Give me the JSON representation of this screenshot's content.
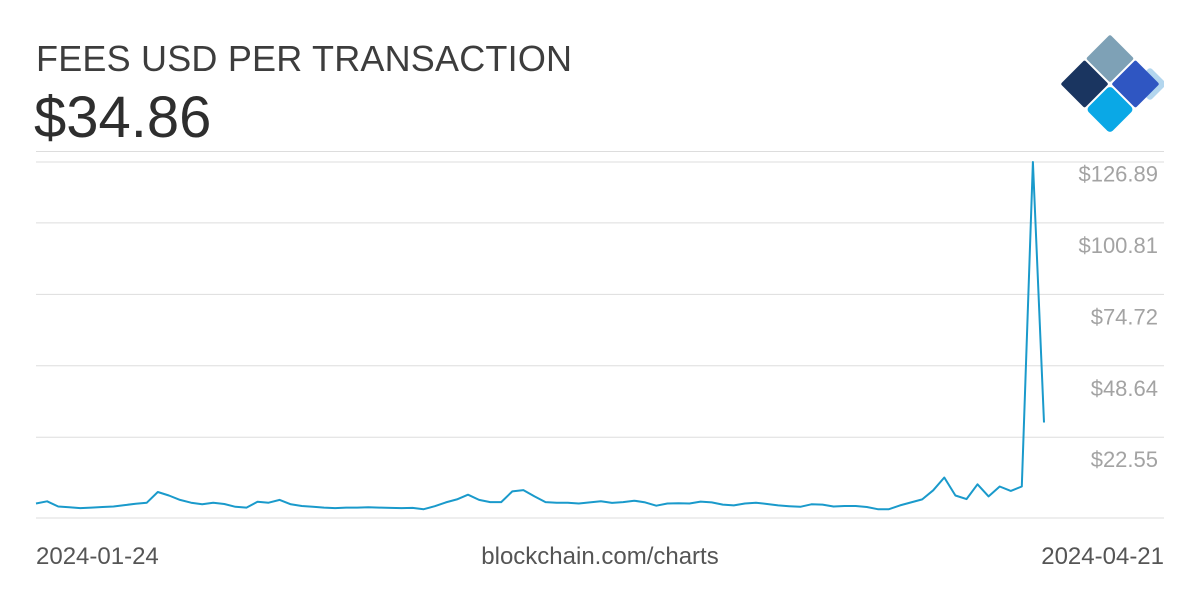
{
  "header": {
    "title": "FEES USD PER TRANSACTION",
    "current_value": "$34.86"
  },
  "footer": {
    "start_date": "2024-01-24",
    "source": "blockchain.com/charts",
    "end_date": "2024-04-21"
  },
  "logo": {
    "colors": [
      "#7ea1b6",
      "#1a3560",
      "#2f56c2",
      "#0aa8e6",
      "#b3d6ee"
    ]
  },
  "colors": {
    "line": "#1a9acb",
    "grid": "#dddddd",
    "tick_label": "#a3a3a3"
  },
  "chart_data": {
    "type": "line",
    "x_range": [
      "2024-01-24",
      "2024-04-21"
    ],
    "ylim": [
      0,
      130
    ],
    "y_ticks": [
      22.55,
      48.64,
      74.72,
      100.81,
      126.89
    ],
    "y_tick_labels": [
      "$22.55",
      "$48.64",
      "$74.72",
      "$100.81",
      "$126.89"
    ],
    "grid": true,
    "series": [
      {
        "values": [
          5.3,
          6.1,
          4.2,
          3.9,
          3.6,
          3.8,
          4.0,
          4.2,
          4.7,
          5.2,
          5.6,
          9.5,
          8.2,
          6.6,
          5.6,
          5.0,
          5.6,
          5.1,
          4.1,
          3.8,
          5.9,
          5.6,
          6.6,
          5.0,
          4.4,
          4.1,
          3.8,
          3.6,
          3.8,
          3.8,
          3.9,
          3.8,
          3.7,
          3.6,
          3.7,
          3.2,
          4.3,
          5.7,
          6.8,
          8.5,
          6.6,
          5.8,
          5.8,
          9.7,
          10.2,
          7.9,
          5.8,
          5.6,
          5.6,
          5.3,
          5.7,
          6.1,
          5.5,
          5.8,
          6.3,
          5.7,
          4.5,
          5.3,
          5.4,
          5.3,
          6.0,
          5.7,
          4.9,
          4.6,
          5.3,
          5.6,
          5.1,
          4.6,
          4.3,
          4.1,
          5.0,
          4.9,
          4.2,
          4.4,
          4.4,
          4.0,
          3.2,
          3.2,
          4.6,
          5.7,
          6.8,
          10.1,
          14.8,
          8.2,
          6.9,
          12.3,
          7.9,
          11.5,
          9.9,
          11.5,
          130.0,
          34.86
        ]
      }
    ]
  }
}
